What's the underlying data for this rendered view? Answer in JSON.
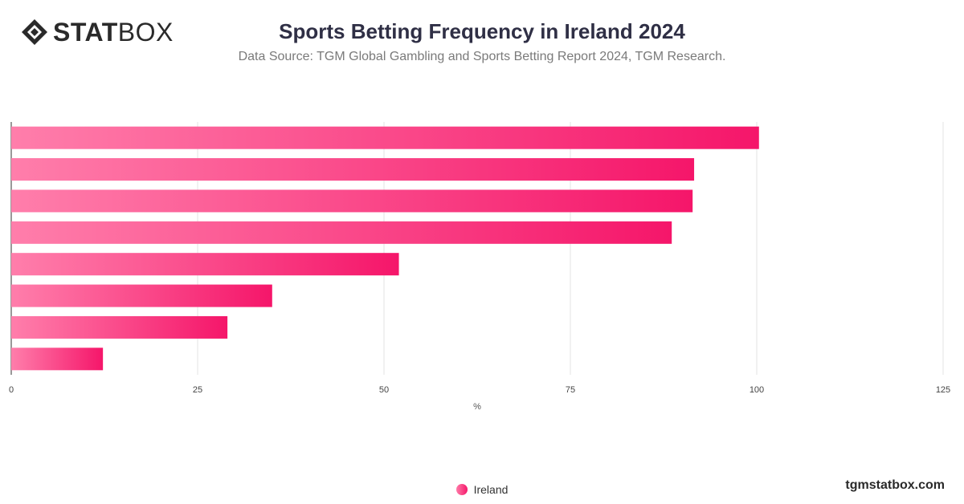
{
  "header": {
    "logo_bold": "STAT",
    "logo_light": "BOX",
    "title": "Sports Betting Frequency in Ireland 2024",
    "subtitle": "Data Source: TGM Global Gambling and Sports Betting Report 2024, TGM Research."
  },
  "chart_data": {
    "type": "bar",
    "orientation": "horizontal",
    "categories": [
      "",
      "",
      "",
      "",
      "",
      "",
      "",
      ""
    ],
    "series": [
      {
        "name": "Ireland",
        "values": [
          100.3,
          91.6,
          91.4,
          88.6,
          52.0,
          35.0,
          29.0,
          12.3
        ]
      }
    ],
    "xlabel": "%",
    "ylabel": "",
    "xlim": [
      0,
      125
    ],
    "x_ticks": [
      0,
      25,
      50,
      75,
      100,
      125
    ],
    "grid": true,
    "legend_position": "bottom"
  },
  "colors": {
    "bar_start": "#ff7eab",
    "bar_end": "#f5166a",
    "grid": "#e3e3e3",
    "axis": "#333333"
  },
  "legend": {
    "label": "Ireland"
  },
  "watermark": "tgmstatbox.com"
}
